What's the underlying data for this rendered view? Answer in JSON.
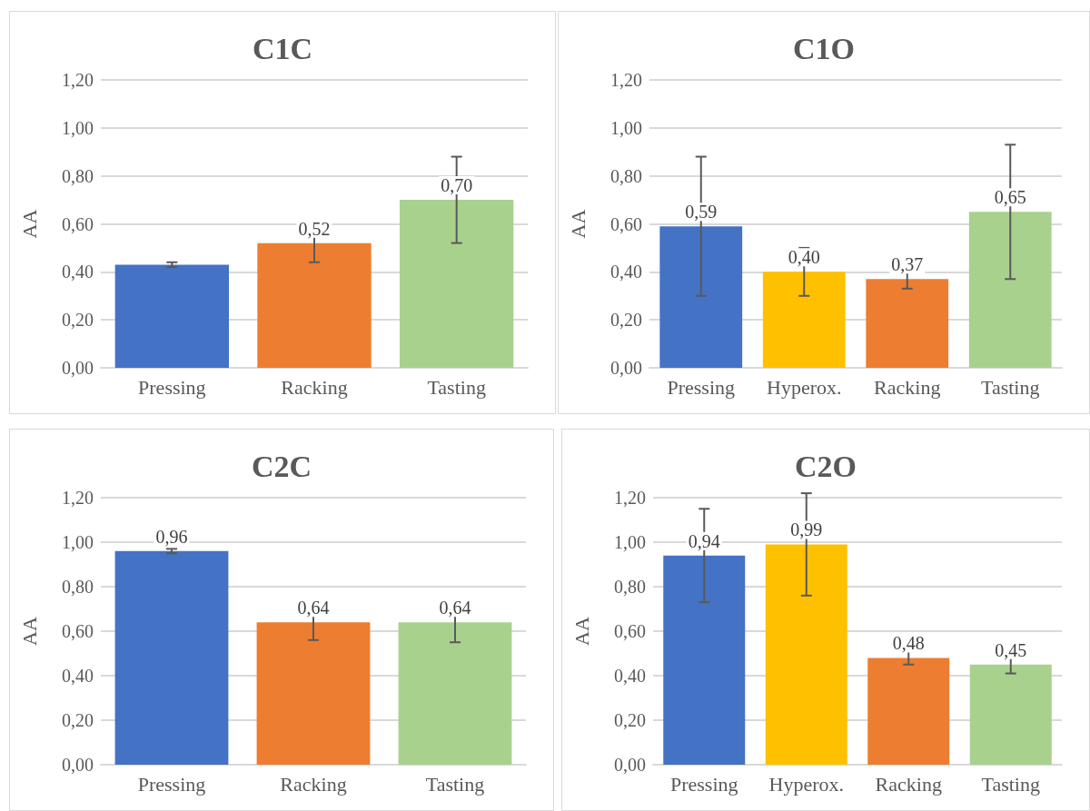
{
  "chart_data": [
    {
      "type": "bar",
      "title": "C1C",
      "ylabel": "AA",
      "categories": [
        "Pressing",
        "Racking",
        "Tasting"
      ],
      "values": [
        0.43,
        0.52,
        0.7
      ],
      "colors": [
        "#4472c4",
        "#ed7d31",
        "#a9d18e"
      ],
      "errors": [
        0.01,
        0.08,
        0.18
      ],
      "value_labels": [
        null,
        "0,52",
        "0,70"
      ],
      "ylim": [
        0,
        1.2
      ],
      "yticks": [
        {
          "value": 0,
          "label": "0,00"
        },
        {
          "value": 0.2,
          "label": "0,20"
        },
        {
          "value": 0.4,
          "label": "0,40"
        },
        {
          "value": 0.6,
          "label": "0,60"
        },
        {
          "value": 0.8,
          "label": "0,80"
        },
        {
          "value": 1.0,
          "label": "1,00"
        },
        {
          "value": 1.2,
          "label": "1,20"
        }
      ],
      "grid": "y"
    },
    {
      "type": "bar",
      "title": "C1O",
      "ylabel": "AA",
      "categories": [
        "Pressing",
        "Hyperox.",
        "Racking",
        "Tasting"
      ],
      "values": [
        0.59,
        0.4,
        0.37,
        0.65
      ],
      "colors": [
        "#4472c4",
        "#ffc000",
        "#ed7d31",
        "#a9d18e"
      ],
      "errors": [
        0.29,
        0.1,
        0.04,
        0.28
      ],
      "value_labels": [
        "0,59",
        "0,40",
        "0,37",
        "0,65"
      ],
      "ylim": [
        0,
        1.2
      ],
      "yticks": [
        {
          "value": 0,
          "label": "0,00"
        },
        {
          "value": 0.2,
          "label": "0,20"
        },
        {
          "value": 0.4,
          "label": "0,40"
        },
        {
          "value": 0.6,
          "label": "0,60"
        },
        {
          "value": 0.8,
          "label": "0,80"
        },
        {
          "value": 1.0,
          "label": "1,00"
        },
        {
          "value": 1.2,
          "label": "1,20"
        }
      ],
      "grid": "y"
    },
    {
      "type": "bar",
      "title": "C2C",
      "ylabel": "AA",
      "categories": [
        "Pressing",
        "Racking",
        "Tasting"
      ],
      "values": [
        0.96,
        0.64,
        0.64
      ],
      "colors": [
        "#4472c4",
        "#ed7d31",
        "#a9d18e"
      ],
      "errors": [
        0.01,
        0.08,
        0.09
      ],
      "value_labels": [
        "0,96",
        "0,64",
        "0,64"
      ],
      "ylim": [
        0,
        1.2
      ],
      "yticks": [
        {
          "value": 0,
          "label": "0,00"
        },
        {
          "value": 0.2,
          "label": "0,20"
        },
        {
          "value": 0.4,
          "label": "0,40"
        },
        {
          "value": 0.6,
          "label": "0,60"
        },
        {
          "value": 0.8,
          "label": "0,80"
        },
        {
          "value": 1.0,
          "label": "1,00"
        },
        {
          "value": 1.2,
          "label": "1,20"
        }
      ],
      "grid": "y"
    },
    {
      "type": "bar",
      "title": "C2O",
      "ylabel": "AA",
      "categories": [
        "Pressing",
        "Hyperox.",
        "Racking",
        "Tasting"
      ],
      "values": [
        0.94,
        0.99,
        0.48,
        0.45
      ],
      "colors": [
        "#4472c4",
        "#ffc000",
        "#ed7d31",
        "#a9d18e"
      ],
      "errors": [
        0.21,
        0.23,
        0.03,
        0.04
      ],
      "value_labels": [
        "0,94",
        "0,99",
        "0,48",
        "0,45"
      ],
      "ylim": [
        0,
        1.2
      ],
      "yticks": [
        {
          "value": 0,
          "label": "0,00"
        },
        {
          "value": 0.2,
          "label": "0,20"
        },
        {
          "value": 0.4,
          "label": "0,40"
        },
        {
          "value": 0.6,
          "label": "0,60"
        },
        {
          "value": 0.8,
          "label": "0,80"
        },
        {
          "value": 1.0,
          "label": "1,00"
        },
        {
          "value": 1.2,
          "label": "1,20"
        }
      ],
      "grid": "y"
    }
  ]
}
